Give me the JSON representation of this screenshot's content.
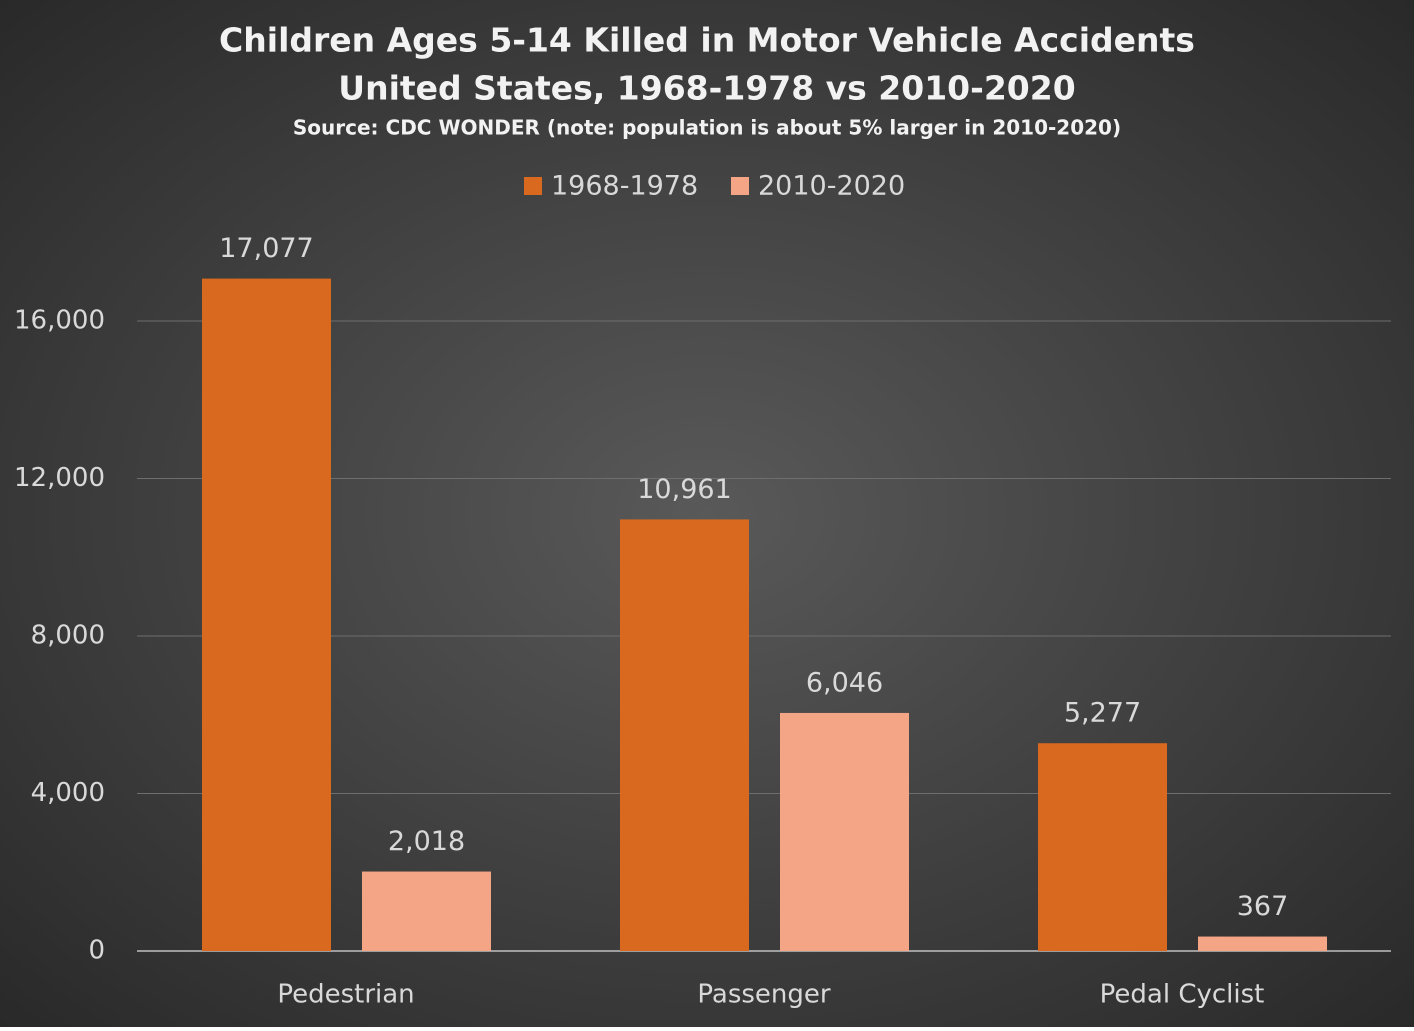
{
  "chart_data": {
    "type": "bar",
    "title": [
      "Children Ages 5-14 Killed in Motor Vehicle Accidents",
      "United States, 1968-1978 vs 2010-2020"
    ],
    "subtitle": "Source: CDC WONDER (note: population is about 5% larger in 2010-2020)",
    "categories": [
      "Pedestrian",
      "Passenger",
      "Pedal Cyclist"
    ],
    "series": [
      {
        "name": "1968-1978",
        "color": "#d8691f",
        "values": [
          17077,
          10961,
          5277
        ],
        "value_labels": [
          "17,077",
          "10,961",
          "5,277"
        ]
      },
      {
        "name": "2010-2020",
        "color": "#f4a586",
        "values": [
          2018,
          6046,
          367
        ],
        "value_labels": [
          "2,018",
          "6,046",
          "367"
        ]
      }
    ],
    "ylim": [
      0,
      18000
    ],
    "yticks": [
      0,
      {
        "value": 4000,
        "label": "4,000"
      },
      {
        "value": 8000,
        "label": "8,000"
      },
      {
        "value": 12000,
        "label": "12,000"
      },
      {
        "value": 16000,
        "label": "16,000"
      }
    ],
    "grid": true,
    "legend": "top"
  }
}
